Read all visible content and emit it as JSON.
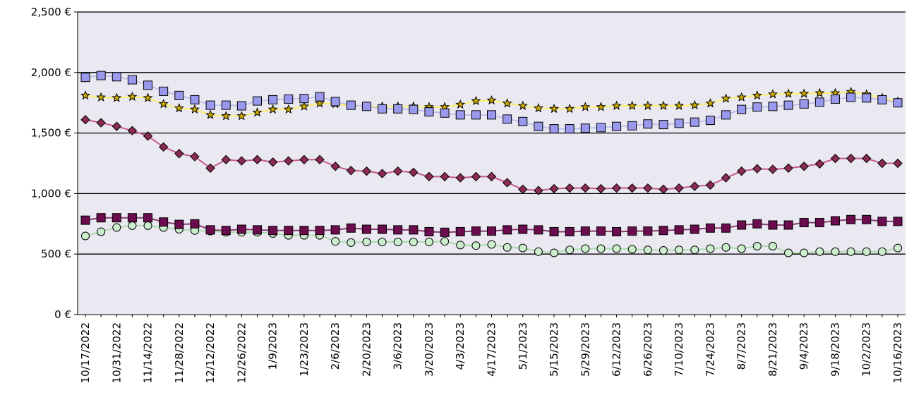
{
  "chart_data": {
    "type": "line",
    "title": "",
    "xlabel": "",
    "ylabel": "",
    "ylim": [
      0,
      2500
    ],
    "yticks": [
      0,
      500,
      1000,
      1500,
      2000,
      2500
    ],
    "ytick_labels": [
      "0 €",
      "500 €",
      "1,000 €",
      "1,500 €",
      "2,000 €",
      "2,500 €"
    ],
    "grid": true,
    "legend": "none",
    "x": [
      "10/17/2022",
      "10/24/2022",
      "10/31/2022",
      "11/7/2022",
      "11/14/2022",
      "11/21/2022",
      "11/28/2022",
      "12/5/2022",
      "12/12/2022",
      "12/19/2022",
      "12/26/2022",
      "1/2/2023",
      "1/9/2023",
      "1/16/2023",
      "1/23/2023",
      "1/30/2023",
      "2/6/2023",
      "2/13/2023",
      "2/20/2023",
      "2/27/2023",
      "3/6/2023",
      "3/13/2023",
      "3/20/2023",
      "3/27/2023",
      "4/3/2023",
      "4/10/2023",
      "4/17/2023",
      "4/24/2023",
      "5/1/2023",
      "5/8/2023",
      "5/15/2023",
      "5/22/2023",
      "5/29/2023",
      "6/5/2023",
      "6/12/2023",
      "6/19/2023",
      "6/26/2023",
      "7/3/2023",
      "7/10/2023",
      "7/17/2023",
      "7/24/2023",
      "7/31/2023",
      "8/7/2023",
      "8/14/2023",
      "8/21/2023",
      "8/28/2023",
      "9/4/2023",
      "9/11/2023",
      "9/18/2023",
      "9/25/2023",
      "10/2/2023",
      "10/9/2023",
      "10/16/2023"
    ],
    "x_tick_labels": [
      "10/17/2022",
      "10/31/2022",
      "11/14/2022",
      "11/28/2022",
      "12/12/2022",
      "12/26/2022",
      "1/9/2023",
      "1/23/2023",
      "2/6/2023",
      "2/20/2023",
      "3/6/2023",
      "3/20/2023",
      "4/3/2023",
      "4/17/2023",
      "5/1/2023",
      "5/15/2023",
      "5/29/2023",
      "6/12/2023",
      "6/26/2023",
      "7/10/2023",
      "7/24/2023",
      "8/7/2023",
      "8/21/2023",
      "9/4/2023",
      "9/18/2023",
      "10/2/2023",
      "10/16/2023"
    ],
    "series": [
      {
        "color": "#9999ee",
        "line_color": "#c0c0f0",
        "marker": "square",
        "values": [
          1960,
          1975,
          1965,
          1940,
          1895,
          1845,
          1810,
          1775,
          1730,
          1730,
          1725,
          1765,
          1775,
          1780,
          1785,
          1800,
          1760,
          1730,
          1720,
          1700,
          1700,
          1695,
          1675,
          1665,
          1650,
          1650,
          1650,
          1615,
          1595,
          1555,
          1535,
          1535,
          1540,
          1545,
          1555,
          1560,
          1575,
          1570,
          1580,
          1590,
          1605,
          1650,
          1695,
          1715,
          1720,
          1730,
          1740,
          1755,
          1780,
          1795,
          1790,
          1775,
          1750
        ]
      },
      {
        "color": "#ccaa00",
        "line_color": "#ffee66",
        "marker": "star",
        "values": [
          1810,
          1795,
          1790,
          1800,
          1790,
          1740,
          1705,
          1695,
          1650,
          1640,
          1640,
          1670,
          1695,
          1695,
          1720,
          1745,
          1740,
          1725,
          1720,
          1720,
          1720,
          1720,
          1715,
          1715,
          1735,
          1765,
          1770,
          1745,
          1725,
          1705,
          1700,
          1700,
          1715,
          1715,
          1725,
          1725,
          1725,
          1725,
          1725,
          1730,
          1745,
          1785,
          1795,
          1810,
          1820,
          1825,
          1825,
          1830,
          1830,
          1840,
          1820,
          1790,
          1760
        ]
      },
      {
        "color": "#8b2a55",
        "line_color": "#c85a8a",
        "marker": "diamond",
        "values": [
          1610,
          1585,
          1555,
          1520,
          1475,
          1385,
          1330,
          1305,
          1210,
          1280,
          1270,
          1280,
          1260,
          1270,
          1280,
          1280,
          1225,
          1190,
          1185,
          1165,
          1185,
          1175,
          1140,
          1140,
          1130,
          1140,
          1140,
          1090,
          1035,
          1025,
          1040,
          1045,
          1045,
          1040,
          1045,
          1045,
          1045,
          1035,
          1045,
          1060,
          1070,
          1130,
          1185,
          1205,
          1200,
          1210,
          1225,
          1245,
          1290,
          1290,
          1290,
          1250,
          1250
        ]
      },
      {
        "color": "#6b0c4e",
        "line_color": "#8a3a70",
        "marker": "square",
        "values": [
          780,
          800,
          800,
          800,
          800,
          765,
          745,
          750,
          700,
          695,
          705,
          700,
          695,
          695,
          695,
          695,
          700,
          715,
          705,
          705,
          700,
          700,
          685,
          680,
          685,
          690,
          690,
          700,
          705,
          700,
          685,
          685,
          690,
          690,
          685,
          690,
          690,
          695,
          700,
          705,
          715,
          715,
          740,
          750,
          740,
          740,
          760,
          760,
          775,
          785,
          785,
          770,
          770
        ]
      },
      {
        "color": "#cceecc",
        "line_color": "#aaddaa",
        "marker": "circle",
        "values": [
          650,
          685,
          720,
          735,
          735,
          720,
          705,
          695,
          690,
          680,
          680,
          680,
          670,
          655,
          655,
          655,
          605,
          595,
          600,
          600,
          600,
          600,
          600,
          605,
          575,
          570,
          580,
          555,
          550,
          520,
          510,
          535,
          545,
          545,
          545,
          540,
          535,
          530,
          535,
          535,
          545,
          555,
          545,
          565,
          565,
          510,
          510,
          520,
          520,
          520,
          520,
          520,
          550
        ]
      }
    ]
  }
}
